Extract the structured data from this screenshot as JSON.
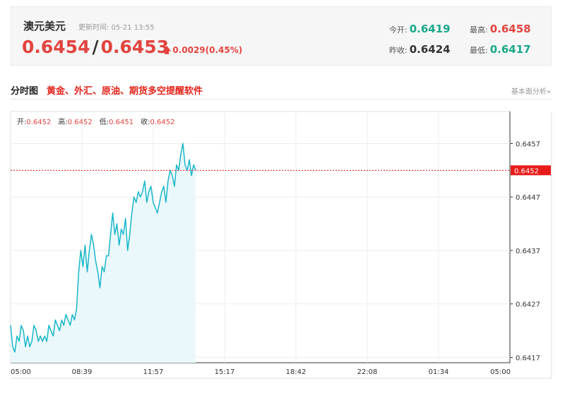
{
  "quote": {
    "name": "澳元美元",
    "update_time": "更新时间: 05-21 13:55",
    "bid": "0.6454",
    "separator": "/",
    "ask": "0.6453",
    "change": "0.0029(0.45%)",
    "open_label": "今开:",
    "open_value": "0.6419",
    "prev_close_label": "昨收:",
    "prev_close_value": "0.6424",
    "high_label": "最高:",
    "high_value": "0.6458",
    "low_label": "最低:",
    "low_value": "0.6417"
  },
  "section": {
    "title": "分时图",
    "promo_link": "黄金、外汇、原油、期货多空提醒软件",
    "analysis_link": "基本面分析»"
  },
  "colors": {
    "up": "#e2443f",
    "down": "#19a88a",
    "line": "#1ab6c9",
    "area": "#eaf8fb",
    "price_tag": "#e81b1b"
  },
  "chart_data": {
    "type": "area",
    "ohlc": [
      {
        "label": "开:",
        "value": "0.6452"
      },
      {
        "label": "高:",
        "value": "0.6452"
      },
      {
        "label": "低:",
        "value": "0.6451"
      },
      {
        "label": "收:",
        "value": "0.6452"
      }
    ],
    "x_ticks": [
      "05:00",
      "08:39",
      "11:57",
      "15:17",
      "18:42",
      "22:08",
      "01:34",
      "05:00"
    ],
    "y_ticks": [
      "0.6457",
      "0.6447",
      "0.6437",
      "0.6427",
      "0.6417"
    ],
    "ylim": [
      0.6416,
      0.6463
    ],
    "current_price": 0.6452,
    "current_price_label": "0.6452",
    "grid": true,
    "series": [
      {
        "x_index": [
          0,
          3,
          6,
          9,
          12,
          15,
          18,
          21,
          24,
          27,
          30,
          33,
          36,
          39,
          42,
          45,
          48,
          51,
          54,
          57,
          60,
          63,
          66,
          69,
          72,
          75,
          78,
          81,
          84,
          87,
          90,
          93,
          96,
          99,
          102,
          105,
          108,
          111,
          114,
          117,
          120,
          123,
          126,
          129,
          132,
          135,
          138,
          141,
          144,
          147,
          150,
          153,
          156,
          159,
          162,
          165,
          168,
          171,
          174,
          177,
          180,
          183,
          186,
          189,
          192,
          195,
          198,
          201,
          204,
          207,
          210,
          213,
          216,
          219,
          222,
          225,
          228,
          231,
          234,
          237,
          240,
          243,
          246,
          249,
          252,
          255,
          258,
          261
        ],
        "values": [
          0.6423,
          0.6419,
          0.6418,
          0.6421,
          0.642,
          0.6423,
          0.6422,
          0.6419,
          0.6421,
          0.6419,
          0.642,
          0.6423,
          0.6422,
          0.642,
          0.6421,
          0.642,
          0.6421,
          0.642,
          0.6423,
          0.6422,
          0.6421,
          0.6424,
          0.6423,
          0.6422,
          0.6424,
          0.6423,
          0.6425,
          0.6424,
          0.6423,
          0.6425,
          0.6424,
          0.6426,
          0.6433,
          0.6437,
          0.6434,
          0.6438,
          0.6433,
          0.6437,
          0.644,
          0.6438,
          0.6435,
          0.6433,
          0.643,
          0.6434,
          0.6433,
          0.6436,
          0.6436,
          0.644,
          0.6444,
          0.644,
          0.6442,
          0.6438,
          0.6441,
          0.644,
          0.6443,
          0.6437,
          0.644,
          0.6444,
          0.6447,
          0.6446,
          0.6448,
          0.6447,
          0.6448,
          0.645,
          0.6446,
          0.6448,
          0.6449,
          0.6446,
          0.6445,
          0.6444,
          0.6446,
          0.6448,
          0.6449,
          0.6446,
          0.645,
          0.6452,
          0.6451,
          0.6449,
          0.6453,
          0.6452,
          0.6455,
          0.6457,
          0.6453,
          0.6452,
          0.6454,
          0.6451,
          0.6453,
          0.6452
        ]
      }
    ],
    "total_points": 705
  }
}
